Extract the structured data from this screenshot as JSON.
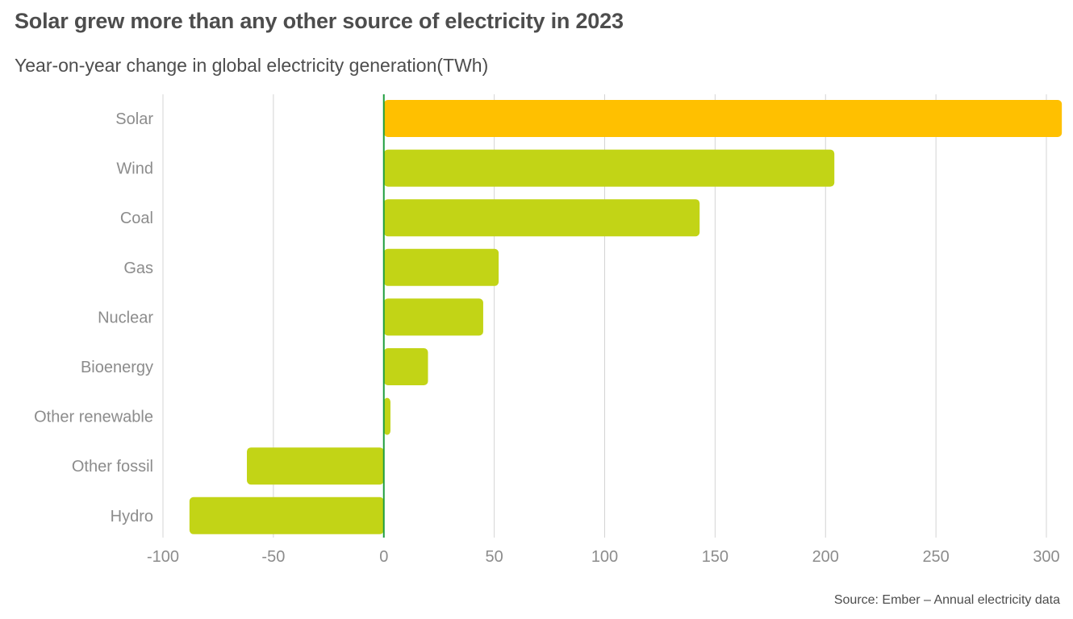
{
  "header": {
    "title": "Solar grew more than any other source of electricity in 2023",
    "subtitle": "Year-on-year change in global electricity  generation(TWh)"
  },
  "footer": {
    "source": "Source: Ember – Annual electricity data"
  },
  "colors": {
    "highlight": "#FFC000",
    "default_bar": "#C2D416",
    "zero_line": "#1E9E3E",
    "grid": "#d4d4d4",
    "label": "#8c8c8c"
  },
  "chart_data": {
    "type": "bar",
    "orientation": "horizontal",
    "title": "Solar grew more than any other source of electricity in 2023",
    "subtitle": "Year-on-year change in global electricity  generation(TWh)",
    "categories": [
      "Solar",
      "Wind",
      "Coal",
      "Gas",
      "Nuclear",
      "Bioenergy",
      "Other renewable",
      "Other fossil",
      "Hydro"
    ],
    "values": [
      307,
      204,
      143,
      52,
      45,
      20,
      3,
      -62,
      -88
    ],
    "xlim": [
      -100,
      300
    ],
    "xticks": [
      -100,
      -50,
      0,
      50,
      100,
      150,
      200,
      250,
      300
    ],
    "xlabel": "",
    "ylabel": "",
    "grid": true,
    "highlight_category": "Solar"
  }
}
